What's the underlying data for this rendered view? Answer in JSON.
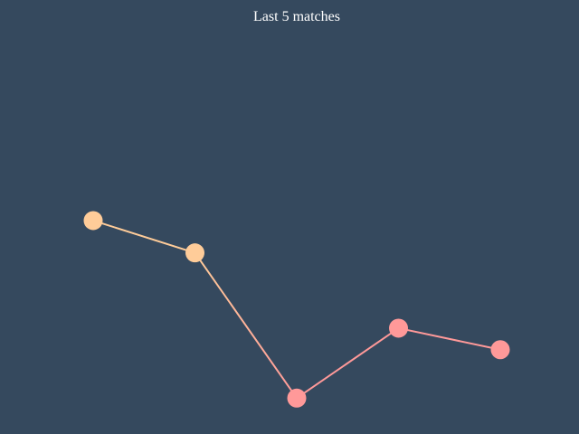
{
  "chart_data": {
    "type": "line",
    "title": "Last 5 matches",
    "x": [
      1,
      2,
      3,
      4,
      5
    ],
    "values": [
      0.59,
      0.53,
      0.26,
      0.39,
      0.35
    ],
    "ylim": [
      0,
      1
    ],
    "grid": false,
    "legend": "none",
    "threshold": 0.5,
    "colors": {
      "background": "#35495e",
      "above": "#ffcc99",
      "below": "#ff9999",
      "title": "#ffffff"
    }
  }
}
